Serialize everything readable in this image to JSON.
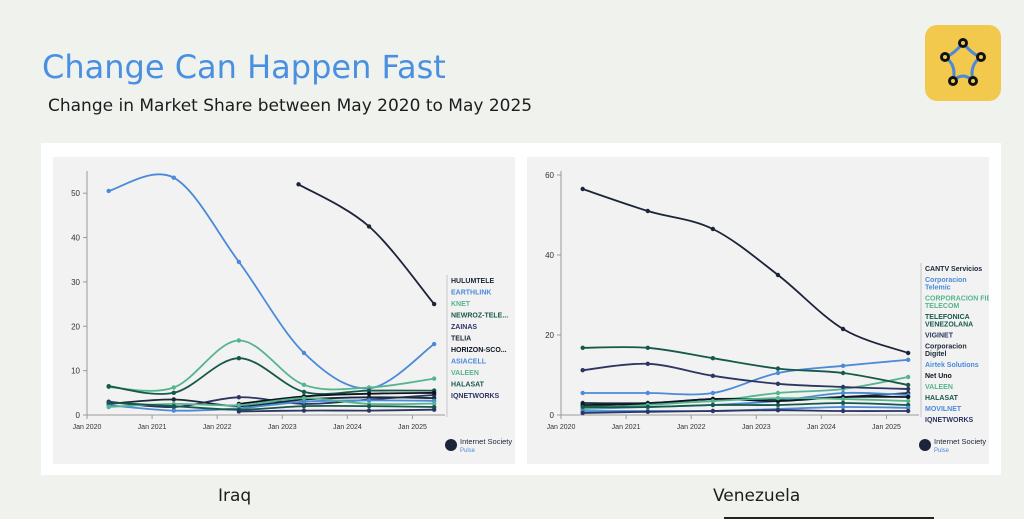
{
  "header": {
    "title": "Change Can Happen Fast",
    "subtitle": "Change in Market Share between May 2020 to May 2025"
  },
  "logo": {
    "icon": "network-star-icon",
    "bg_color": "#f2c94c"
  },
  "watermark": {
    "brand": "Internet Society",
    "product": "Pulse"
  },
  "captions": {
    "left": "Iraq",
    "right": "Venezuela"
  },
  "chart_data": [
    {
      "type": "line",
      "country": "Iraq",
      "x_ticks": [
        "Jan 2020",
        "Jan 2021",
        "Jan 2022",
        "Jan 2023",
        "Jan 2024",
        "Jan 2025"
      ],
      "y_ticks": [
        0,
        10,
        20,
        30,
        40,
        50
      ],
      "ylim": [
        0,
        55
      ],
      "xlim": [
        "2020-01",
        "2025-07"
      ],
      "grid": false,
      "series": [
        {
          "name": "HULUMTELE",
          "color": "#1b2438",
          "x": [
            "2023-04",
            "2024-05",
            "2025-05"
          ],
          "y": [
            52,
            42.5,
            25
          ]
        },
        {
          "name": "EARTHLINK",
          "color": "#4a8ad8",
          "x": [
            "2020-05",
            "2021-05",
            "2022-05",
            "2023-05",
            "2024-05",
            "2025-05"
          ],
          "y": [
            50.5,
            53.5,
            34.5,
            14,
            6,
            16
          ]
        },
        {
          "name": "KNET",
          "color": "#55b58e",
          "x": [
            "2020-05",
            "2021-05",
            "2022-05",
            "2023-05",
            "2024-05",
            "2025-05"
          ],
          "y": [
            6.3,
            6.2,
            16.8,
            6.8,
            6.2,
            8.2
          ]
        },
        {
          "name": "NEWROZ-TELE...",
          "color": "#16584a",
          "x": [
            "2020-05",
            "2021-05",
            "2022-05",
            "2023-05",
            "2024-05",
            "2025-05"
          ],
          "y": [
            6.5,
            5,
            12.8,
            5.2,
            5.5,
            5.5
          ]
        },
        {
          "name": "ZAINAS",
          "color": "#2d3561",
          "x": [
            "2020-05",
            "2021-05",
            "2022-05",
            "2023-05",
            "2024-05",
            "2025-05"
          ],
          "y": [
            3,
            1.8,
            4,
            2.5,
            3.5,
            4.5
          ]
        },
        {
          "name": "TELIA",
          "color": "#1a2a38",
          "x": [
            "2020-05",
            "2021-05",
            "2022-05",
            "2023-05",
            "2024-05",
            "2025-05"
          ],
          "y": [
            2.5,
            3.5,
            2,
            3.5,
            4,
            3.8
          ]
        },
        {
          "name": "HORIZON-SCO...",
          "color": "#0d1520",
          "x": [
            "2022-05",
            "2023-05",
            "2024-05",
            "2025-05"
          ],
          "y": [
            2.5,
            4.2,
            4.8,
            5
          ]
        },
        {
          "name": "ASIACELL",
          "color": "#4a8ad8",
          "x": [
            "2020-05",
            "2021-05",
            "2022-05",
            "2023-05",
            "2024-05",
            "2025-05"
          ],
          "y": [
            2.2,
            1,
            1.5,
            3,
            3.3,
            3.2
          ]
        },
        {
          "name": "VALEEN",
          "color": "#55b58e",
          "x": [
            "2020-05",
            "2021-05",
            "2022-05",
            "2023-05",
            "2024-05",
            "2025-05"
          ],
          "y": [
            1.8,
            2.5,
            2.2,
            3.8,
            2.5,
            2.6
          ]
        },
        {
          "name": "HALASAT",
          "color": "#16584a",
          "x": [
            "2020-05",
            "2021-05",
            "2022-05",
            "2023-05",
            "2024-05",
            "2025-05"
          ],
          "y": [
            2.8,
            2,
            1.2,
            2,
            2,
            1.8
          ]
        },
        {
          "name": "IQNETWORKS",
          "color": "#2d3561",
          "x": [
            "2022-05",
            "2023-05",
            "2024-05",
            "2025-05"
          ],
          "y": [
            0.8,
            1,
            1,
            1.2
          ]
        }
      ]
    },
    {
      "type": "line",
      "country": "Venezuela",
      "x_ticks": [
        "Jan 2020",
        "Jan 2021",
        "Jan 2022",
        "Jan 2023",
        "Jan 2024",
        "Jan 2025"
      ],
      "y_ticks": [
        0,
        20,
        40,
        60
      ],
      "ylim": [
        0,
        61
      ],
      "xlim": [
        "2020-01",
        "2025-07"
      ],
      "grid": false,
      "series": [
        {
          "name": "CANTV Servicios",
          "color": "#1b2438",
          "x": [
            "2020-05",
            "2021-05",
            "2022-05",
            "2023-05",
            "2024-05",
            "2025-05"
          ],
          "y": [
            56.5,
            51,
            46.5,
            35,
            21.5,
            15.5
          ]
        },
        {
          "name": "Corporacion Telemic",
          "color": "#4a8ad8",
          "x": [
            "2020-05",
            "2021-05",
            "2022-05",
            "2023-05",
            "2024-05",
            "2025-05"
          ],
          "y": [
            5.5,
            5.5,
            5.5,
            10.5,
            12.3,
            13.8
          ]
        },
        {
          "name": "CORPORACION FIBEX TELECOM",
          "color": "#55b58e",
          "x": [
            "2020-05",
            "2021-05",
            "2022-05",
            "2023-05",
            "2024-05",
            "2025-05"
          ],
          "y": [
            2,
            3,
            3.5,
            5.5,
            6.5,
            9.5
          ]
        },
        {
          "name": "TELEFONICA VENEZOLANA",
          "color": "#16584a",
          "x": [
            "2020-05",
            "2021-05",
            "2022-05",
            "2023-05",
            "2024-05",
            "2025-05"
          ],
          "y": [
            16.8,
            16.8,
            14.2,
            11.6,
            10.5,
            7.5
          ]
        },
        {
          "name": "VIGINET",
          "color": "#2d3561",
          "x": [
            "2020-05",
            "2021-05",
            "2022-05",
            "2023-05",
            "2024-05",
            "2025-05"
          ],
          "y": [
            11.2,
            12.8,
            9.8,
            7.8,
            7,
            6.5
          ]
        },
        {
          "name": "Corporacion Digitel",
          "color": "#1a2a38",
          "x": [
            "2020-05",
            "2021-05",
            "2022-05",
            "2023-05",
            "2024-05",
            "2025-05"
          ],
          "y": [
            3,
            3,
            4,
            4,
            4.5,
            5.5
          ]
        },
        {
          "name": "Airtek Solutions",
          "color": "#4a8ad8",
          "x": [
            "2020-05",
            "2021-05",
            "2022-05",
            "2023-05",
            "2024-05",
            "2025-05"
          ],
          "y": [
            1.5,
            2,
            2.5,
            3.5,
            5.5,
            5
          ]
        },
        {
          "name": "Net Uno",
          "color": "#0d1520",
          "x": [
            "2020-05",
            "2021-05",
            "2022-05",
            "2023-05",
            "2024-05",
            "2025-05"
          ],
          "y": [
            2.5,
            2.8,
            4,
            3.5,
            4.5,
            4.5
          ]
        },
        {
          "name": "VALEEN",
          "color": "#55b58e",
          "x": [
            "2020-05",
            "2021-05",
            "2022-05",
            "2023-05",
            "2024-05",
            "2025-05"
          ],
          "y": [
            1.5,
            2.5,
            3.5,
            4.2,
            4,
            3.5
          ]
        },
        {
          "name": "HALASAT",
          "color": "#16584a",
          "x": [
            "2020-05",
            "2021-05",
            "2022-05",
            "2023-05",
            "2024-05",
            "2025-05"
          ],
          "y": [
            2,
            2,
            2.5,
            2.5,
            3,
            2.5
          ]
        },
        {
          "name": "MOVILNET",
          "color": "#4a8ad8",
          "x": [
            "2020-05",
            "2021-05",
            "2022-05",
            "2023-05",
            "2024-05",
            "2025-05"
          ],
          "y": [
            1,
            1,
            1,
            1.5,
            2,
            1.8
          ]
        },
        {
          "name": "IQNETWORKS",
          "color": "#2d3561",
          "x": [
            "2020-05",
            "2021-05",
            "2022-05",
            "2023-05",
            "2024-05",
            "2025-05"
          ],
          "y": [
            0.5,
            0.8,
            1,
            1.2,
            1,
            1
          ]
        }
      ]
    }
  ]
}
